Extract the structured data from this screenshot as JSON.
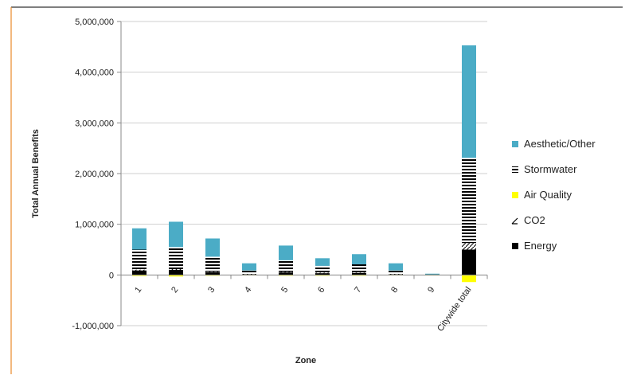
{
  "chart_data": {
    "type": "bar",
    "stacked": true,
    "categories": [
      "1",
      "2",
      "3",
      "4",
      "5",
      "6",
      "7",
      "8",
      "9",
      "Citywide total"
    ],
    "series": [
      {
        "name": "Energy",
        "color": "#000000",
        "pattern": "solid",
        "values": [
          90000,
          100000,
          55000,
          15000,
          50000,
          35000,
          40000,
          15000,
          3000,
          500000
        ]
      },
      {
        "name": "CO2",
        "color": "#000000",
        "pattern": "diagonal",
        "values": [
          15000,
          15000,
          10000,
          5000,
          10000,
          10000,
          10000,
          5000,
          1000,
          130000
        ]
      },
      {
        "name": "Air Quality",
        "color": "#ffff00",
        "pattern": "solid",
        "values": [
          -20000,
          -30000,
          -15000,
          -5000,
          -15000,
          -15000,
          -15000,
          -5000,
          -1000,
          -140000
        ]
      },
      {
        "name": "Stormwater",
        "color": "#000000",
        "pattern": "horizontal-lines",
        "values": [
          395000,
          435000,
          295000,
          70000,
          230000,
          135000,
          160000,
          70000,
          6000,
          1680000
        ]
      },
      {
        "name": "Aesthetic/Other",
        "color": "#4bacc6",
        "pattern": "solid",
        "values": [
          420000,
          500000,
          360000,
          140000,
          290000,
          150000,
          200000,
          140000,
          15000,
          2220000
        ]
      }
    ],
    "xlabel": "Zone",
    "ylabel": "Total Annual Benefits",
    "ylim": [
      -1000000,
      5000000
    ],
    "yticks": [
      -1000000,
      0,
      1000000,
      2000000,
      3000000,
      4000000,
      5000000
    ],
    "ytick_labels": [
      "-1,000,000",
      "0",
      "1,000,000",
      "2,000,000",
      "3,000,000",
      "4,000,000",
      "5,000,000"
    ],
    "legend": [
      "Aesthetic/Other",
      "Stormwater",
      "Air Quality",
      "CO2",
      "Energy"
    ],
    "legend_position": "right",
    "grid": true
  }
}
